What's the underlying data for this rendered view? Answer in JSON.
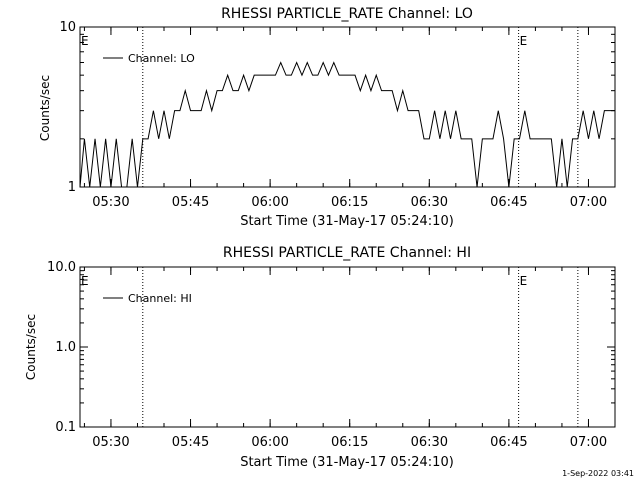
{
  "footer_stamp": "1-Sep-2022 03:41",
  "chart_data": [
    {
      "type": "line",
      "title": "RHESSI PARTICLE_RATE Channel: LO",
      "xlabel": "Start Time (31-May-17 05:24:10)",
      "ylabel": "Counts/sec",
      "yscale": "log",
      "ylim": [
        1,
        10
      ],
      "ytick_labels": [
        "1",
        "10"
      ],
      "xlim": [
        "05:24:10",
        "07:05:00"
      ],
      "xtick_labels": [
        "05:30",
        "05:45",
        "06:00",
        "06:15",
        "06:30",
        "06:45",
        "07:00"
      ],
      "legend": {
        "position": "top-left",
        "entries": [
          "Channel: LO"
        ]
      },
      "event_markers": [
        {
          "time": "05:24:10",
          "label": "E"
        },
        {
          "time": "06:46:50",
          "label": "E"
        }
      ],
      "vertical_lines": [
        "05:36:00",
        "06:46:50",
        "06:58:00"
      ],
      "series": [
        {
          "name": "Channel: LO",
          "x": [
            "05:24:10",
            "05:25:00",
            "05:26:00",
            "05:27:00",
            "05:28:00",
            "05:29:00",
            "05:30:00",
            "05:31:00",
            "05:32:00",
            "05:33:00",
            "05:34:00",
            "05:35:00",
            "05:36:00",
            "05:37:00",
            "05:38:00",
            "05:39:00",
            "05:40:00",
            "05:41:00",
            "05:42:00",
            "05:43:00",
            "05:44:00",
            "05:45:00",
            "05:46:00",
            "05:47:00",
            "05:48:00",
            "05:49:00",
            "05:50:00",
            "05:51:00",
            "05:52:00",
            "05:53:00",
            "05:54:00",
            "05:55:00",
            "05:56:00",
            "05:57:00",
            "05:58:00",
            "05:59:00",
            "06:00:00",
            "06:01:00",
            "06:02:00",
            "06:03:00",
            "06:04:00",
            "06:05:00",
            "06:06:00",
            "06:07:00",
            "06:08:00",
            "06:09:00",
            "06:10:00",
            "06:11:00",
            "06:12:00",
            "06:13:00",
            "06:14:00",
            "06:15:00",
            "06:16:00",
            "06:17:00",
            "06:18:00",
            "06:19:00",
            "06:20:00",
            "06:21:00",
            "06:22:00",
            "06:23:00",
            "06:24:00",
            "06:25:00",
            "06:26:00",
            "06:27:00",
            "06:28:00",
            "06:29:00",
            "06:30:00",
            "06:31:00",
            "06:32:00",
            "06:33:00",
            "06:34:00",
            "06:35:00",
            "06:36:00",
            "06:37:00",
            "06:38:00",
            "06:39:00",
            "06:40:00",
            "06:41:00",
            "06:42:00",
            "06:43:00",
            "06:44:00",
            "06:45:00",
            "06:46:00",
            "06:47:00",
            "06:48:00",
            "06:49:00",
            "06:50:00",
            "06:51:00",
            "06:52:00",
            "06:53:00",
            "06:54:00",
            "06:55:00",
            "06:56:00",
            "06:57:00",
            "06:58:00",
            "06:59:00",
            "07:00:00",
            "07:01:00",
            "07:02:00",
            "07:03:00",
            "07:04:00",
            "07:05:00"
          ],
          "y": [
            1,
            2,
            1,
            2,
            1,
            2,
            1,
            2,
            1,
            1,
            2,
            1,
            2,
            2,
            3,
            2,
            3,
            2,
            3,
            3,
            4,
            3,
            3,
            3,
            4,
            3,
            4,
            4,
            5,
            4,
            4,
            5,
            4,
            5,
            5,
            5,
            5,
            5,
            6,
            5,
            5,
            6,
            5,
            6,
            5,
            5,
            6,
            5,
            6,
            5,
            5,
            5,
            5,
            4,
            5,
            4,
            5,
            4,
            4,
            4,
            3,
            4,
            3,
            3,
            3,
            2,
            2,
            3,
            2,
            3,
            2,
            3,
            2,
            2,
            2,
            1,
            2,
            2,
            2,
            3,
            2,
            1,
            2,
            2,
            3,
            2,
            2,
            2,
            2,
            2,
            1,
            2,
            1,
            2,
            2,
            3,
            2,
            3,
            2,
            3,
            3,
            3
          ]
        }
      ]
    },
    {
      "type": "line",
      "title": "RHESSI PARTICLE_RATE Channel: HI",
      "xlabel": "Start Time (31-May-17 05:24:10)",
      "ylabel": "Counts/sec",
      "yscale": "log",
      "ylim": [
        0.1,
        10
      ],
      "ytick_labels": [
        "0.1",
        "1.0",
        "10.0"
      ],
      "xlim": [
        "05:24:10",
        "07:05:00"
      ],
      "xtick_labels": [
        "05:30",
        "05:45",
        "06:00",
        "06:15",
        "06:30",
        "06:45",
        "07:00"
      ],
      "legend": {
        "position": "top-left",
        "entries": [
          "Channel: HI"
        ]
      },
      "event_markers": [
        {
          "time": "05:24:10",
          "label": "E"
        },
        {
          "time": "06:46:50",
          "label": "E"
        }
      ],
      "vertical_lines": [
        "05:36:00",
        "06:46:50",
        "06:58:00"
      ],
      "series": [
        {
          "name": "Channel: HI",
          "x": [],
          "y": []
        }
      ]
    }
  ]
}
